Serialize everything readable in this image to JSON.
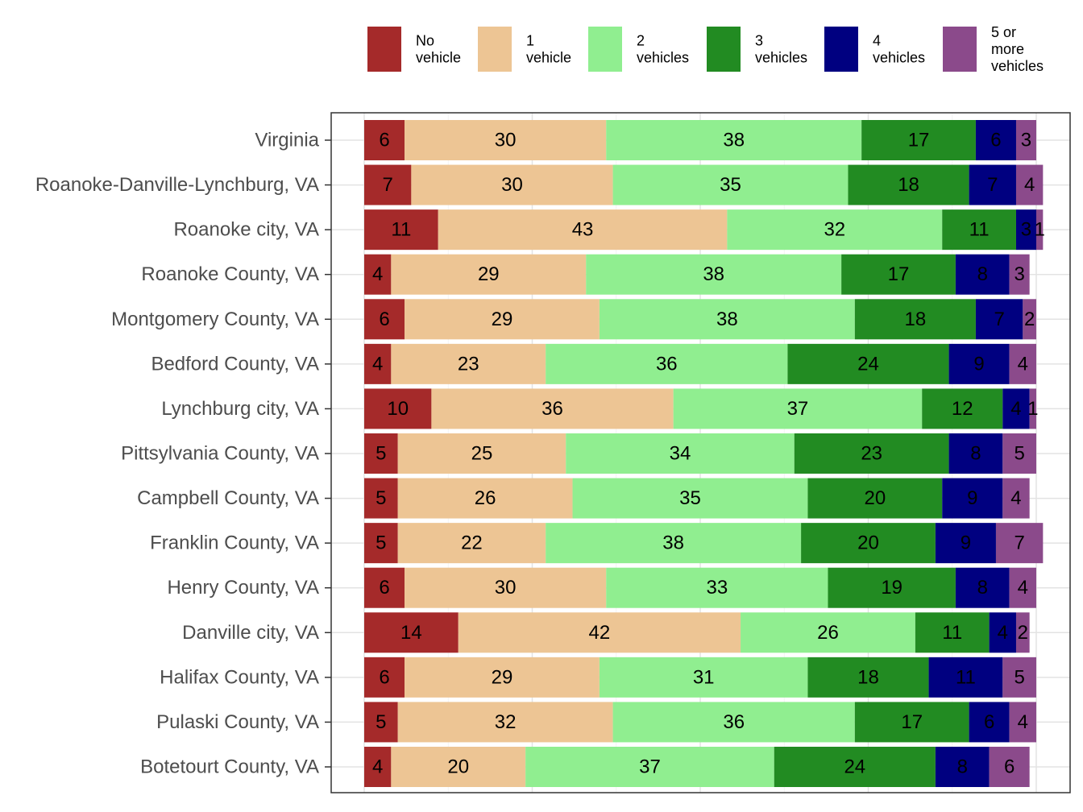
{
  "chart_data": {
    "type": "bar",
    "orientation": "horizontal",
    "stacked": true,
    "title": "",
    "xlabel": "",
    "ylabel": "",
    "xlim": [
      0,
      100
    ],
    "grid": true,
    "legend_position": "top",
    "categories": [
      "Virginia",
      "Roanoke-Danville-Lynchburg, VA",
      "Roanoke city, VA",
      "Roanoke County, VA",
      "Montgomery County, VA",
      "Bedford County, VA",
      "Lynchburg city, VA",
      "Pittsylvania County, VA",
      "Campbell County, VA",
      "Franklin County, VA",
      "Henry County, VA",
      "Danville city, VA",
      "Halifax County, VA",
      "Pulaski County, VA",
      "Botetourt County, VA"
    ],
    "series": [
      {
        "name": "No vehicle",
        "legend_lines": [
          "No",
          "vehicle"
        ],
        "color": "#A52A2A",
        "values": [
          6,
          7,
          11,
          4,
          6,
          4,
          10,
          5,
          5,
          5,
          6,
          14,
          6,
          5,
          4
        ]
      },
      {
        "name": "1 vehicle",
        "legend_lines": [
          "1",
          "vehicle"
        ],
        "color": "#EDC594",
        "values": [
          30,
          30,
          43,
          29,
          29,
          23,
          36,
          25,
          26,
          22,
          30,
          42,
          29,
          32,
          20
        ]
      },
      {
        "name": "2 vehicles",
        "legend_lines": [
          "2",
          "vehicles"
        ],
        "color": "#90EE90",
        "values": [
          38,
          35,
          32,
          38,
          38,
          36,
          37,
          34,
          35,
          38,
          33,
          26,
          31,
          36,
          37
        ]
      },
      {
        "name": "3 vehicles",
        "legend_lines": [
          "3",
          "vehicles"
        ],
        "color": "#228B22",
        "values": [
          17,
          18,
          11,
          17,
          18,
          24,
          12,
          23,
          20,
          20,
          19,
          11,
          18,
          17,
          24
        ]
      },
      {
        "name": "4 vehicles",
        "legend_lines": [
          "4",
          "vehicles"
        ],
        "color": "#000080",
        "values": [
          6,
          7,
          3,
          8,
          7,
          9,
          4,
          8,
          9,
          9,
          8,
          4,
          11,
          6,
          8
        ]
      },
      {
        "name": "5 or more vehicles",
        "legend_lines": [
          "5 or",
          "more",
          "vehicles"
        ],
        "color": "#8B4A8B",
        "values": [
          3,
          4,
          1,
          3,
          2,
          4,
          1,
          5,
          4,
          7,
          4,
          2,
          5,
          4,
          6
        ]
      }
    ]
  }
}
